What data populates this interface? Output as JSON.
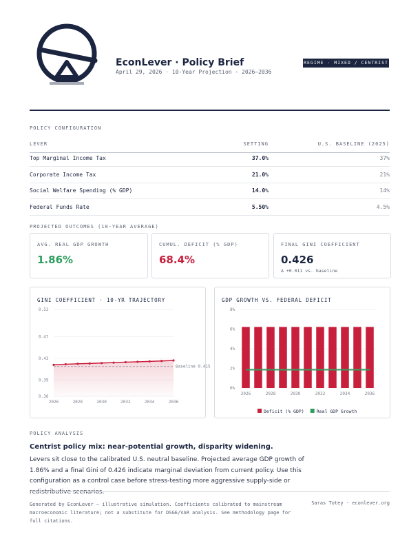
{
  "header": {
    "title": "EconLever · Policy Brief",
    "subtitle": "April 29, 2026 · 10-Year Projection · 2026–2036",
    "badge": "REGIME · MIXED / CENTRIST"
  },
  "config": {
    "label": "POLICY CONFIGURATION",
    "columns": [
      "LEVER",
      "SETTING",
      "U.S. BASELINE (2025)"
    ],
    "rows": [
      [
        "Top Marginal Income Tax",
        "37.0%",
        "37%"
      ],
      [
        "Corporate Income Tax",
        "21.0%",
        "21%"
      ],
      [
        "Social Welfare Spending (% GDP)",
        "14.0%",
        "14%"
      ],
      [
        "Federal Funds Rate",
        "5.50%",
        "4.5%"
      ]
    ]
  },
  "outcomes": {
    "label": "PROJECTED OUTCOMES (10-YEAR AVERAGE)",
    "cards": [
      {
        "label": "AVG. REAL GDP GROWTH",
        "value": "1.86%"
      },
      {
        "label": "CUMUL. DEFICIT (% GDP)",
        "value": "68.4%"
      },
      {
        "label": "FINAL GINI COEFFICIENT",
        "value": "0.426",
        "note": "Δ +0.011 vs. baseline"
      }
    ]
  },
  "chart_data": [
    {
      "type": "line",
      "title": "GINI COEFFICIENT · 10-YR TRAJECTORY",
      "x": [
        2026,
        2027,
        2028,
        2029,
        2030,
        2031,
        2032,
        2033,
        2034,
        2035,
        2036
      ],
      "series": [
        {
          "color": "#c8203c",
          "values": [
            0.418,
            0.419,
            0.4198,
            0.4205,
            0.4212,
            0.422,
            0.4228,
            0.4235,
            0.4243,
            0.4251,
            0.426
          ]
        }
      ],
      "xlim": [
        2026,
        2036
      ],
      "xticks": [
        2026,
        2028,
        2030,
        2032,
        2034,
        2036
      ],
      "ylim": [
        0.36,
        0.52
      ],
      "yticks": [
        0.36,
        0.39,
        0.43,
        0.47,
        0.52
      ],
      "baseline": {
        "value": 0.415,
        "label": "Baseline 0.415"
      },
      "grid": true
    },
    {
      "type": "bar",
      "title": "GDP GROWTH VS. FEDERAL DEFICIT",
      "categories": [
        "2026",
        null,
        "2028",
        null,
        "2030",
        null,
        "2032",
        null,
        "2034",
        null,
        "2036"
      ],
      "series": [
        {
          "name": "Deficit (% GDP)",
          "color": "#c8203c",
          "values": [
            6.22,
            6.22,
            6.22,
            6.22,
            6.22,
            6.22,
            6.22,
            6.22,
            6.22,
            6.22,
            6.22
          ]
        },
        {
          "name": "Real GDP Growth",
          "color": "#2e9e5f",
          "type": "line",
          "values": [
            1.86,
            1.86,
            1.86,
            1.86,
            1.86,
            1.86,
            1.86,
            1.86,
            1.86,
            1.86,
            1.86
          ]
        }
      ],
      "ylim": [
        0,
        8
      ],
      "yticks": [
        {
          "value": 0,
          "label": "0%"
        },
        {
          "value": 2,
          "label": "2%"
        },
        {
          "value": 4,
          "label": "4%"
        },
        {
          "value": 6,
          "label": "6%"
        },
        {
          "value": 8,
          "label": "8%"
        }
      ],
      "grid": true,
      "legend": "bottom"
    }
  ],
  "analysis": {
    "label": "POLICY ANALYSIS",
    "heading": "Centrist policy mix: near-potential growth, disparity widening.",
    "body": "Levers sit close to the calibrated U.S. neutral baseline. Projected average GDP growth of 1.86% and a final Gini of 0.426 indicate marginal deviation from current policy. Use this configuration as a control case before stress-testing more aggressive supply-side or redistributive scenarios."
  },
  "footer": {
    "note": "Generated by EconLever — illustrative simulation. Coefficients calibrated to mainstream macroeconomic literature; not a substitute for DSGE/VAR analysis. See methodology page for full citations.",
    "credit": "Saras Totey · econlever.org"
  }
}
